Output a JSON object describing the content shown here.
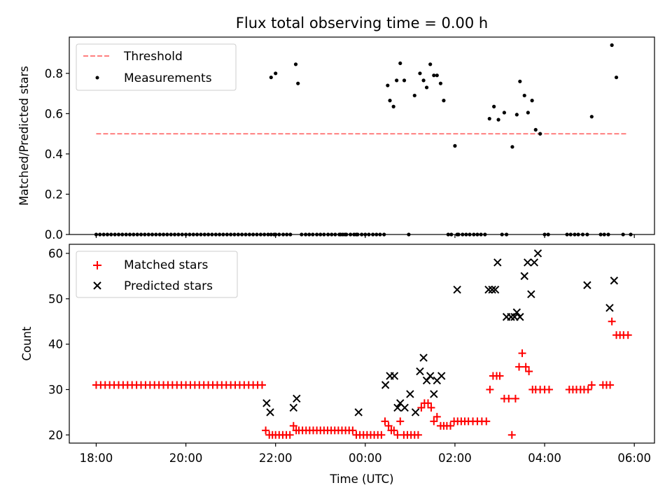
{
  "chart_data": [
    {
      "type": "scatter",
      "title": "Flux total observing time = 0.00 h",
      "xlabel": "",
      "ylabel": "Matched/Predicted stars",
      "xlim": [
        -0.6,
        12.45
      ],
      "ylim": [
        0.0,
        0.98
      ],
      "yticks": [
        0.0,
        0.2,
        0.4,
        0.6,
        0.8
      ],
      "ytick_labels": [
        "0.0",
        "0.2",
        "0.4",
        "0.6",
        "0.8"
      ],
      "legend": {
        "position": "top-left",
        "entries": [
          "Threshold",
          "Measurements"
        ]
      },
      "series": [
        {
          "name": "Threshold",
          "style": "dashed-line",
          "color": "#ff7f7f",
          "x": [
            0.0,
            11.85
          ],
          "y": [
            0.5,
            0.5
          ]
        },
        {
          "name": "Measurements",
          "style": "dots",
          "color": "#000000",
          "x": [
            0.0,
            0.083,
            0.167,
            0.25,
            0.333,
            0.417,
            0.5,
            0.583,
            0.667,
            0.75,
            0.833,
            0.917,
            1.0,
            1.083,
            1.167,
            1.25,
            1.333,
            1.417,
            1.5,
            1.583,
            1.667,
            1.75,
            1.833,
            1.917,
            2.0,
            2.083,
            2.167,
            2.25,
            2.333,
            2.417,
            2.5,
            2.583,
            2.667,
            2.75,
            2.833,
            2.917,
            3.0,
            3.083,
            3.167,
            3.25,
            3.333,
            3.417,
            3.5,
            3.583,
            3.667,
            3.75,
            3.833,
            3.9,
            3.97,
            3.9,
            4.0,
            4.08,
            4.17,
            4.25,
            4.33,
            4.45,
            4.5,
            4.58,
            4.67,
            4.75,
            4.83,
            4.92,
            5.0,
            5.08,
            5.17,
            5.25,
            5.33,
            5.42,
            5.5,
            5.58,
            5.67,
            5.75,
            5.83,
            5.92,
            6.0,
            6.08,
            6.17,
            6.25,
            6.33,
            6.42,
            6.5,
            6.55,
            6.63,
            6.7,
            6.78,
            6.87,
            6.97,
            7.1,
            7.22,
            7.3,
            7.37,
            7.45,
            7.53,
            7.6,
            7.68,
            7.75,
            7.85,
            7.92,
            8.05,
            8.0,
            8.08,
            8.17,
            8.25,
            8.33,
            8.42,
            8.5,
            8.58,
            8.67,
            8.77,
            8.87,
            8.97,
            9.1,
            9.05,
            9.15,
            9.28,
            9.38,
            9.45,
            9.55,
            9.63,
            9.72,
            9.8,
            9.9,
            10.0,
            10.08,
            10.5,
            10.58,
            10.67,
            10.75,
            10.85,
            10.95,
            11.05,
            11.25,
            11.33,
            11.42,
            11.5,
            11.6,
            11.75,
            11.92,
            4.0,
            5.45,
            5.55,
            5.8
          ],
          "y": [
            0.0,
            0.0,
            0.0,
            0.0,
            0.0,
            0.0,
            0.0,
            0.0,
            0.0,
            0.0,
            0.0,
            0.0,
            0.0,
            0.0,
            0.0,
            0.0,
            0.0,
            0.0,
            0.0,
            0.0,
            0.0,
            0.0,
            0.0,
            0.0,
            0.0,
            0.0,
            0.0,
            0.0,
            0.0,
            0.0,
            0.0,
            0.0,
            0.0,
            0.0,
            0.0,
            0.0,
            0.0,
            0.0,
            0.0,
            0.0,
            0.0,
            0.0,
            0.0,
            0.0,
            0.0,
            0.0,
            0.0,
            0.0,
            0.0,
            0.78,
            0.8,
            0.0,
            0.0,
            0.0,
            0.0,
            0.845,
            0.75,
            0.0,
            0.0,
            0.0,
            0.0,
            0.0,
            0.0,
            0.0,
            0.0,
            0.0,
            0.0,
            0.0,
            0.0,
            0.0,
            0.0,
            0.0,
            0.0,
            0.0,
            0.0,
            0.0,
            0.0,
            0.0,
            0.0,
            0.0,
            0.74,
            0.665,
            0.635,
            0.765,
            0.85,
            0.765,
            0.0,
            0.69,
            0.8,
            0.765,
            0.73,
            0.845,
            0.79,
            0.79,
            0.75,
            0.665,
            0.0,
            0.0,
            0.0,
            0.44,
            0.0,
            0.0,
            0.0,
            0.0,
            0.0,
            0.0,
            0.0,
            0.0,
            0.575,
            0.635,
            0.57,
            0.605,
            0.0,
            0.0,
            0.435,
            0.595,
            0.76,
            0.69,
            0.605,
            0.665,
            0.52,
            0.5,
            0.0,
            0.0,
            0.0,
            0.0,
            0.0,
            0.0,
            0.0,
            0.0,
            0.585,
            0.0,
            0.0,
            0.0,
            0.94,
            0.78,
            0.0,
            0.0,
            0.0,
            0.0,
            0.0,
            0.0
          ]
        }
      ]
    },
    {
      "type": "scatter",
      "title": "",
      "xlabel": "Time (UTC)",
      "ylabel": "Count",
      "xlim": [
        -0.6,
        12.45
      ],
      "ylim": [
        18.2,
        62.0
      ],
      "yticks": [
        20,
        30,
        40,
        50,
        60
      ],
      "ytick_labels": [
        "20",
        "30",
        "40",
        "50",
        "60"
      ],
      "xticks": [
        0,
        2,
        4,
        6,
        8,
        10,
        12
      ],
      "xtick_labels": [
        "18:00",
        "20:00",
        "22:00",
        "00:00",
        "02:00",
        "04:00",
        "06:00"
      ],
      "legend": {
        "position": "top-left",
        "entries": [
          "Matched stars",
          "Predicted stars"
        ]
      },
      "series": [
        {
          "name": "Matched stars",
          "style": "plus",
          "color": "#ff0000",
          "x": [
            0.0,
            0.1,
            0.2,
            0.3,
            0.4,
            0.5,
            0.6,
            0.7,
            0.8,
            0.9,
            1.0,
            1.1,
            1.2,
            1.3,
            1.4,
            1.5,
            1.6,
            1.7,
            1.8,
            1.9,
            2.0,
            2.1,
            2.2,
            2.3,
            2.4,
            2.5,
            2.6,
            2.7,
            2.8,
            2.9,
            3.0,
            3.1,
            3.2,
            3.3,
            3.4,
            3.5,
            3.6,
            3.7,
            3.78,
            3.86,
            3.93,
            4.0,
            4.08,
            4.16,
            4.24,
            4.32,
            4.4,
            4.46,
            4.52,
            4.6,
            4.68,
            4.76,
            4.84,
            4.92,
            5.0,
            5.08,
            5.16,
            5.24,
            5.32,
            5.4,
            5.48,
            5.56,
            5.64,
            5.72,
            5.8,
            5.88,
            5.96,
            6.04,
            6.12,
            6.2,
            6.28,
            6.36,
            6.44,
            6.52,
            6.58,
            6.64,
            6.72,
            6.78,
            6.86,
            6.94,
            7.02,
            7.1,
            7.18,
            7.25,
            7.32,
            7.4,
            7.47,
            7.53,
            7.6,
            7.68,
            7.75,
            7.82,
            7.9,
            7.98,
            8.06,
            8.14,
            8.22,
            8.3,
            8.4,
            8.5,
            8.6,
            8.7,
            8.78,
            8.85,
            8.93,
            9.0,
            9.1,
            9.2,
            9.27,
            9.35,
            9.43,
            9.5,
            9.58,
            9.65,
            9.73,
            9.8,
            9.9,
            10.0,
            10.1,
            10.55,
            10.63,
            10.71,
            10.8,
            10.88,
            10.97,
            11.05,
            11.3,
            11.38,
            11.46,
            11.5,
            11.6,
            11.68,
            11.76,
            11.86
          ],
          "y": [
            31,
            31,
            31,
            31,
            31,
            31,
            31,
            31,
            31,
            31,
            31,
            31,
            31,
            31,
            31,
            31,
            31,
            31,
            31,
            31,
            31,
            31,
            31,
            31,
            31,
            31,
            31,
            31,
            31,
            31,
            31,
            31,
            31,
            31,
            31,
            31,
            31,
            31,
            21,
            20,
            20,
            20,
            20,
            20,
            20,
            20,
            22,
            21,
            21,
            21,
            21,
            21,
            21,
            21,
            21,
            21,
            21,
            21,
            21,
            21,
            21,
            21,
            21,
            21,
            20,
            20,
            20,
            20,
            20,
            20,
            20,
            20,
            23,
            22,
            21,
            21,
            20,
            23,
            20,
            20,
            20,
            20,
            20,
            26,
            27,
            27,
            26,
            23,
            24,
            22,
            22,
            22,
            22,
            23,
            23,
            23,
            23,
            23,
            23,
            23,
            23,
            23,
            30,
            33,
            33,
            33,
            28,
            28,
            20,
            28,
            35,
            38,
            35,
            34,
            30,
            30,
            30,
            30,
            30,
            30,
            30,
            30,
            30,
            30,
            30,
            31,
            31,
            31,
            31,
            45,
            42,
            42,
            42,
            42
          ]
        },
        {
          "name": "Predicted stars",
          "style": "x",
          "color": "#000000",
          "x": [
            3.8,
            3.88,
            4.4,
            4.47,
            5.85,
            6.45,
            6.55,
            6.65,
            6.72,
            6.78,
            6.88,
            7.0,
            7.12,
            7.22,
            7.3,
            7.37,
            7.45,
            7.53,
            7.6,
            7.7,
            8.05,
            8.75,
            8.83,
            8.9,
            8.95,
            9.15,
            9.25,
            9.33,
            9.38,
            9.45,
            9.55,
            9.62,
            9.7,
            9.77,
            9.85,
            10.95,
            11.45,
            11.55
          ],
          "y": [
            27,
            25,
            26,
            28,
            25,
            31,
            33,
            33,
            26,
            27,
            26,
            29,
            25,
            34,
            37,
            32,
            33,
            29,
            32,
            33,
            52,
            52,
            52,
            52,
            58,
            46,
            46,
            46,
            47,
            46,
            55,
            58,
            51,
            58,
            60,
            53,
            48,
            54
          ]
        }
      ]
    }
  ]
}
